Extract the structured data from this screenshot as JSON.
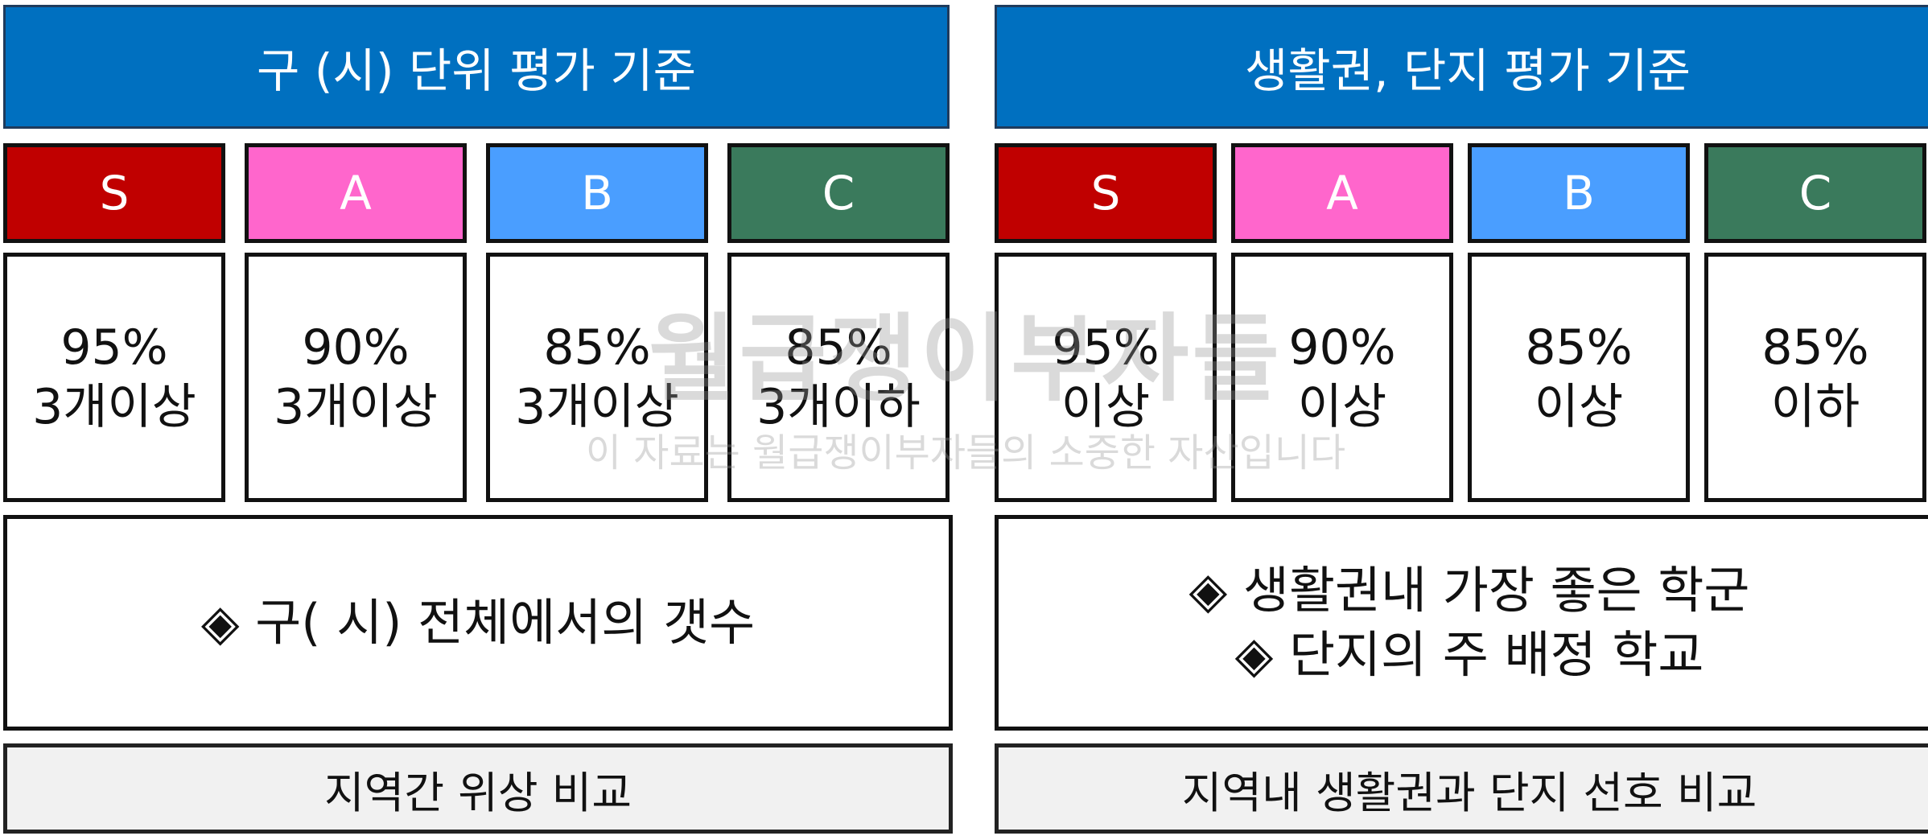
{
  "colors": {
    "header": "#0070C0",
    "S": "#C00000",
    "A": "#FF66CC",
    "B": "#4A9EFF",
    "C": "#3A7A5C"
  },
  "left": {
    "title": "구 (시) 단위 평가 기준",
    "grades": [
      {
        "label": "S",
        "line1": "95%",
        "line2": "3개이상"
      },
      {
        "label": "A",
        "line1": "90%",
        "line2": "3개이상"
      },
      {
        "label": "B",
        "line1": "85%",
        "line2": "3개이상"
      },
      {
        "label": "C",
        "line1": "85%",
        "line2": "3개이하"
      }
    ],
    "desc": [
      "◈ 구( 시)  전체에서의 갯수"
    ],
    "footer": "지역간 위상 비교"
  },
  "right": {
    "title": "생활권,  단지 평가 기준",
    "grades": [
      {
        "label": "S",
        "line1": "95%",
        "line2": "이상"
      },
      {
        "label": "A",
        "line1": "90%",
        "line2": "이상"
      },
      {
        "label": "B",
        "line1": "85%",
        "line2": "이상"
      },
      {
        "label": "C",
        "line1": "85%",
        "line2": "이하"
      }
    ],
    "desc": [
      "◈  생활권내 가장   좋은 학군",
      "◈ 단지의  주 배정 학교"
    ],
    "footer": "지역내 생활권과 단지 선호 비교"
  },
  "watermark": {
    "main": "월급쟁이부자들",
    "sub": "이 자료는 월급쟁이부자들의 소중한 자산입니다"
  }
}
